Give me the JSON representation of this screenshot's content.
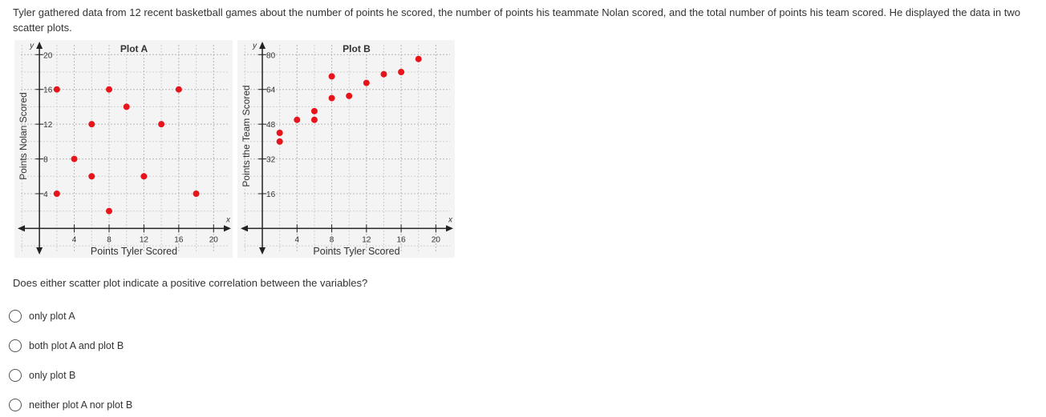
{
  "question_stem": "Tyler gathered data from 12 recent basketball games about the number of points he scored, the number of points his teammate Nolan scored, and the total number of points his team scored. He displayed the data in two scatter plots.",
  "chart_data": [
    {
      "type": "scatter",
      "title": "Plot A",
      "x_label": "Points Tyler Scored",
      "y_label": "Points Nolan Scored",
      "x_letter": "x",
      "y_letter": "y",
      "color": "#e8141c",
      "x": [
        2,
        2,
        4,
        6,
        6,
        8,
        8,
        10,
        12,
        14,
        16,
        18
      ],
      "y": [
        16,
        4,
        8,
        12,
        6,
        16,
        2,
        14,
        6,
        12,
        16,
        4
      ],
      "xlim": [
        -2.5,
        22
      ],
      "ylim": [
        -3,
        21.5
      ],
      "xticks": [
        4,
        8,
        12,
        16,
        20
      ],
      "yticks": [
        4,
        8,
        12,
        16,
        20
      ],
      "grid": true
    },
    {
      "type": "scatter",
      "title": "Plot B",
      "x_label": "Points Tyler Scored",
      "y_label": "Points the Team Scored",
      "x_letter": "x",
      "y_letter": "y",
      "color": "#e8141c",
      "x": [
        2,
        2,
        4,
        6,
        6,
        8,
        8,
        10,
        12,
        14,
        16,
        18
      ],
      "y": [
        44,
        40,
        50,
        50,
        54,
        70,
        60,
        61,
        67,
        71,
        72,
        78
      ],
      "xlim": [
        -2.5,
        22
      ],
      "ylim": [
        -12,
        86
      ],
      "xticks": [
        4,
        8,
        12,
        16,
        20
      ],
      "yticks": [
        16,
        32,
        48,
        64,
        80
      ],
      "grid": true
    }
  ],
  "question": "Does either scatter plot indicate a positive correlation between the variables?",
  "options": [
    "only plot A",
    "both plot A and plot B",
    "only plot B",
    "neither plot A nor plot B"
  ]
}
